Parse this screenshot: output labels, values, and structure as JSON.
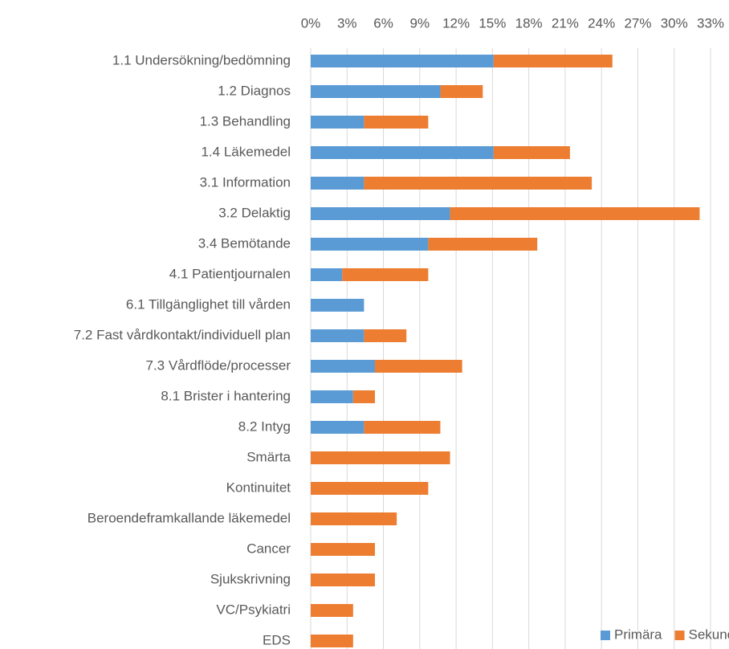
{
  "chart_data": {
    "type": "stacked_barh",
    "categories": [
      "1.1 Undersökning/bedömning",
      "1.2 Diagnos",
      "1.3 Behandling",
      "1.4 Läkemedel",
      "3.1 Information",
      "3.2 Delaktig",
      "3.4 Bemötande",
      "4.1 Patientjournalen",
      "6.1 Tillgänglighet till vården",
      "7.2 Fast vårdkontakt/individuell plan",
      "7.3 Vårdflöde/processer",
      "8.1 Brister i hantering",
      "8.2 Intyg",
      "Smärta",
      "Kontinuitet",
      "Beroendeframkallande läkemedel",
      "Cancer",
      "Sjukskrivning",
      "VC/Psykiatri",
      "EDS"
    ],
    "series": [
      {
        "name": "Primära",
        "color": "#5b9bd5",
        "values": [
          15.1,
          10.7,
          4.4,
          15.1,
          4.4,
          11.5,
          9.7,
          2.6,
          4.4,
          4.4,
          5.3,
          3.5,
          4.4,
          0,
          0,
          0,
          0,
          0,
          0,
          0
        ]
      },
      {
        "name": "Sekundära",
        "color": "#ed7d31",
        "values": [
          9.8,
          3.5,
          5.3,
          6.3,
          18.8,
          20.6,
          9.0,
          7.1,
          0,
          3.5,
          7.2,
          1.8,
          6.3,
          11.5,
          9.7,
          7.1,
          5.3,
          5.3,
          3.5,
          3.5
        ]
      }
    ],
    "xlim": [
      0,
      33
    ],
    "xticks": [
      {
        "value": 0,
        "label": "0%"
      },
      {
        "value": 3,
        "label": "3%"
      },
      {
        "value": 6,
        "label": "6%"
      },
      {
        "value": 9,
        "label": "9%"
      },
      {
        "value": 12,
        "label": "12%"
      },
      {
        "value": 15,
        "label": "15%"
      },
      {
        "value": 18,
        "label": "18%"
      },
      {
        "value": 21,
        "label": "21%"
      },
      {
        "value": 24,
        "label": "24%"
      },
      {
        "value": 27,
        "label": "27%"
      },
      {
        "value": 30,
        "label": "30%"
      },
      {
        "value": 33,
        "label": "33%"
      }
    ],
    "grid": true,
    "legend": "bottom-right"
  }
}
